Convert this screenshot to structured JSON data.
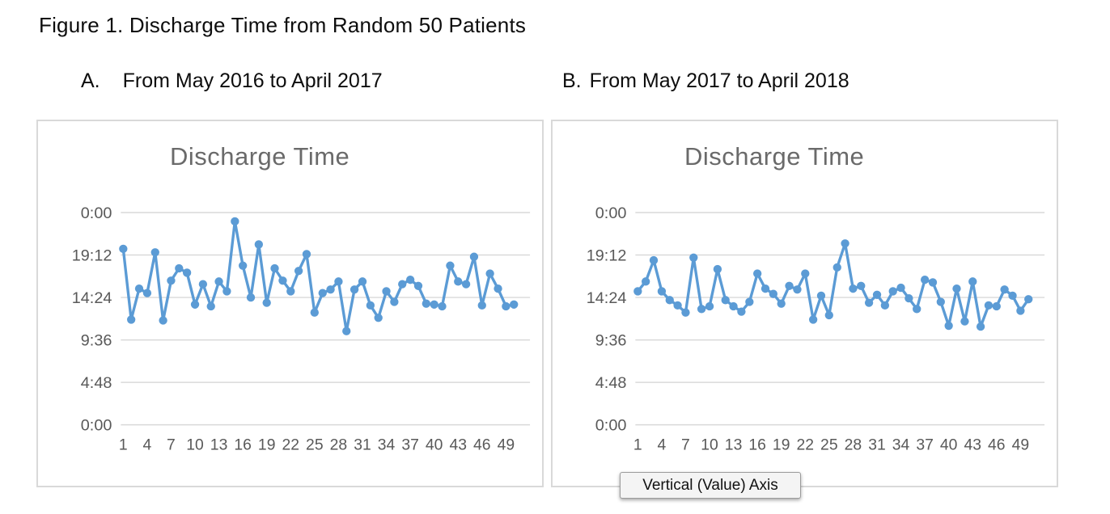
{
  "figure": {
    "title": "Figure 1. Discharge Time from Random 50 Patients",
    "panel_a_label": "A.",
    "panel_a_title": "From May 2016 to April 2017",
    "panel_b_label": "B.",
    "panel_b_title": "From May 2017 to April 2018"
  },
  "tooltip": {
    "text": "Vertical (Value) Axis"
  },
  "colors": {
    "line": "#5B9BD5",
    "marker": "#5B9BD5",
    "grid": "#D9D9D9",
    "chart_border": "#D9D9D9",
    "axis_text": "#595959",
    "chart_title_text": "#6A6A6A"
  },
  "chart_data": [
    {
      "type": "line",
      "panel": "A",
      "title": "Discharge Time",
      "units": "time of day (h:mm), 24h axis",
      "n_points": 50,
      "grid": "horizontal",
      "legend": "none",
      "y_axis": {
        "tick_labels_top_to_bottom": [
          "0:00",
          "19:12",
          "14:24",
          "9:36",
          "4:48",
          "0:00"
        ],
        "min_hours": 0,
        "max_hours": 24,
        "tick_interval_hours": 4.8
      },
      "x_axis": {
        "tick_labels": [
          "1",
          "4",
          "7",
          "10",
          "13",
          "16",
          "19",
          "22",
          "25",
          "28",
          "31",
          "34",
          "37",
          "40",
          "43",
          "46",
          "49"
        ]
      },
      "values_hours": [
        19.9,
        11.9,
        15.4,
        14.9,
        19.5,
        11.8,
        16.3,
        17.7,
        17.2,
        13.6,
        15.9,
        13.4,
        16.2,
        15.1,
        23.0,
        18.0,
        14.4,
        20.4,
        13.8,
        17.7,
        16.3,
        15.1,
        17.4,
        19.3,
        12.7,
        14.9,
        15.3,
        16.2,
        10.6,
        15.3,
        16.2,
        13.5,
        12.1,
        15.1,
        13.9,
        15.9,
        16.4,
        15.7,
        13.7,
        13.6,
        13.4,
        18.0,
        16.2,
        15.9,
        19.0,
        13.5,
        17.1,
        15.4,
        13.4,
        13.6
      ]
    },
    {
      "type": "line",
      "panel": "B",
      "title": "Discharge Time",
      "units": "time of day (h:mm), 24h axis",
      "n_points": 50,
      "grid": "horizontal",
      "legend": "none",
      "y_axis": {
        "tick_labels_top_to_bottom": [
          "0:00",
          "19:12",
          "14:24",
          "9:36",
          "4:48",
          "0:00"
        ],
        "min_hours": 0,
        "max_hours": 24,
        "tick_interval_hours": 4.8
      },
      "x_axis": {
        "tick_labels": [
          "1",
          "4",
          "7",
          "10",
          "13",
          "16",
          "19",
          "22",
          "25",
          "28",
          "31",
          "34",
          "37",
          "40",
          "43",
          "46",
          "49"
        ]
      },
      "values_hours": [
        15.1,
        16.2,
        18.6,
        15.1,
        14.1,
        13.5,
        12.7,
        18.9,
        13.1,
        13.4,
        17.6,
        14.1,
        13.4,
        12.8,
        13.9,
        17.1,
        15.4,
        14.8,
        13.7,
        15.7,
        15.3,
        17.1,
        11.9,
        14.6,
        12.4,
        17.8,
        20.5,
        15.4,
        15.7,
        13.8,
        14.7,
        13.5,
        15.1,
        15.5,
        14.3,
        13.1,
        16.4,
        16.1,
        13.9,
        11.2,
        15.4,
        11.7,
        16.2,
        11.1,
        13.5,
        13.4,
        15.3,
        14.6,
        12.9,
        14.2
      ]
    }
  ]
}
